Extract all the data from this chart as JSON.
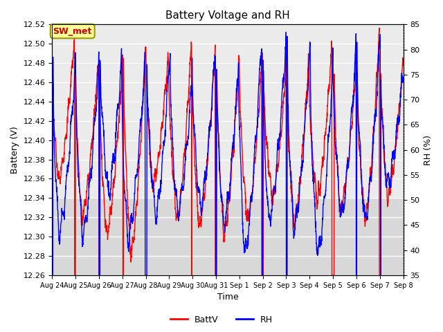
{
  "title": "Battery Voltage and RH",
  "xlabel": "Time",
  "ylabel_left": "Battery (V)",
  "ylabel_right": "RH (%)",
  "ylim_left": [
    12.26,
    12.52
  ],
  "ylim_right": [
    35,
    85
  ],
  "yticks_left": [
    12.26,
    12.28,
    12.3,
    12.32,
    12.34,
    12.36,
    12.38,
    12.4,
    12.42,
    12.44,
    12.46,
    12.48,
    12.5,
    12.52
  ],
  "yticks_right": [
    35,
    40,
    45,
    50,
    55,
    60,
    65,
    70,
    75,
    80,
    85
  ],
  "x_tick_labels": [
    "Aug 24",
    "Aug 25",
    "Aug 26",
    "Aug 27",
    "Aug 28",
    "Aug 29",
    "Aug 30",
    "Aug 31",
    "Sep 1",
    "Sep 2",
    "Sep 3",
    "Sep 4",
    "Sep 5",
    "Sep 6",
    "Sep 7",
    "Sep 8"
  ],
  "legend_labels": [
    "BattV",
    "RH"
  ],
  "line_colors": [
    "red",
    "blue"
  ],
  "annotation_text": "SW_met",
  "annotation_facecolor": "#FFFF99",
  "annotation_edgecolor": "#999900",
  "annotation_textcolor": "#CC0000",
  "band_upper_color": "#EBEBEB",
  "band_lower_color": "#D8D8D8",
  "band_upper_range": [
    12.34,
    12.52
  ],
  "band_lower_range": [
    12.26,
    12.34
  ],
  "bg_color": "#FFFFFF",
  "grid_color": "#FFFFFF",
  "figsize": [
    6.4,
    4.8
  ],
  "dpi": 100
}
